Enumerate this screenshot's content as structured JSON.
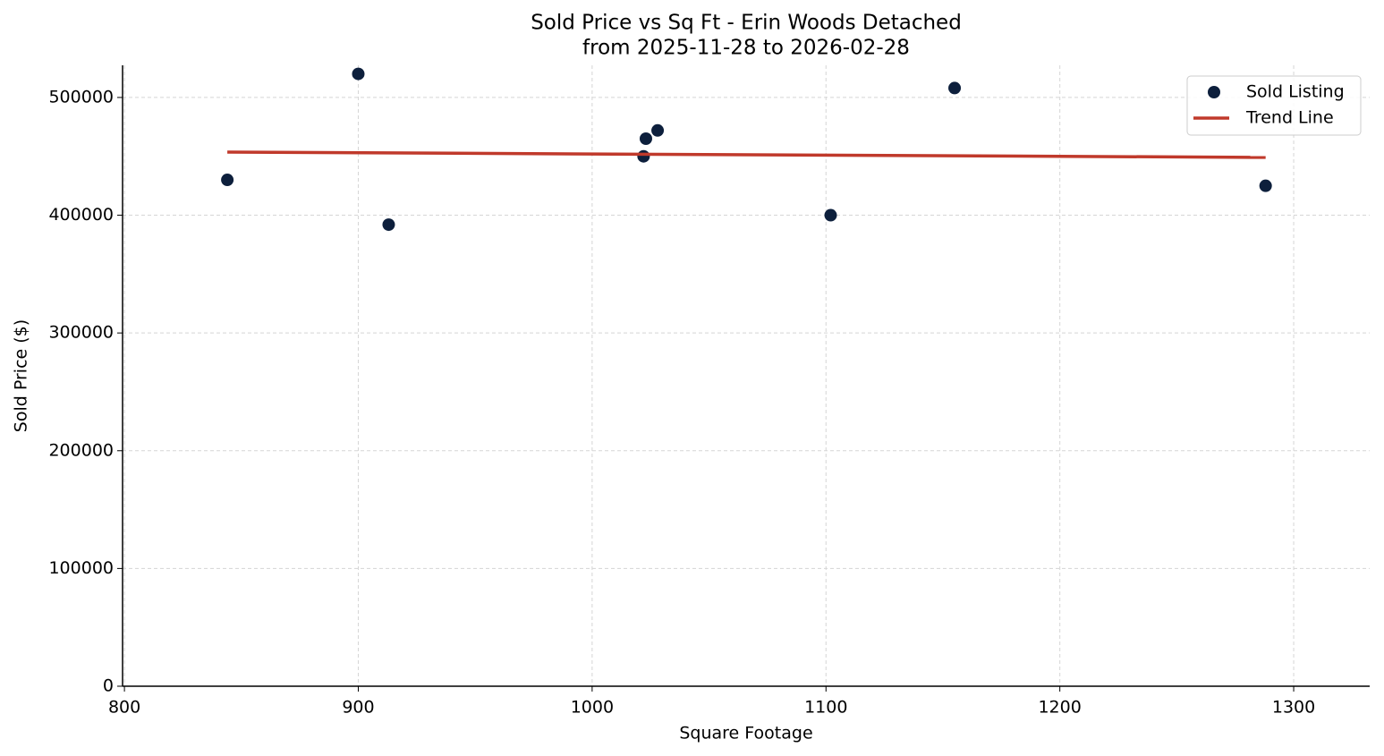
{
  "chart_data": {
    "type": "scatter",
    "title": "Sold Price vs Sq Ft - Erin Woods Detached",
    "subtitle": "from 2025-11-28 to 2026-02-28",
    "x_label": "Square Footage",
    "y_label": "Sold Price ($)",
    "xlim": [
      799.2,
      1332.5
    ],
    "xticks": [
      800,
      900,
      1000,
      1100,
      1200,
      1300
    ],
    "ylim": [
      0,
      527300
    ],
    "yticks": [
      0,
      100000,
      200000,
      300000,
      400000,
      500000
    ],
    "grid": true,
    "legend": "upper right",
    "series": [
      {
        "name": "Sold Listing",
        "type": "scatter",
        "color": "#0d1f3c",
        "x": [
          844,
          900,
          913,
          1022,
          1023,
          1028,
          1102,
          1155,
          1288
        ],
        "values": [
          430000,
          520000,
          392000,
          450000,
          465000,
          472000,
          400000,
          508000,
          425000
        ]
      },
      {
        "name": "Trend Line",
        "type": "line",
        "color": "#c0392b",
        "x": [
          844,
          1288
        ],
        "values": [
          453600,
          449100
        ]
      }
    ]
  }
}
